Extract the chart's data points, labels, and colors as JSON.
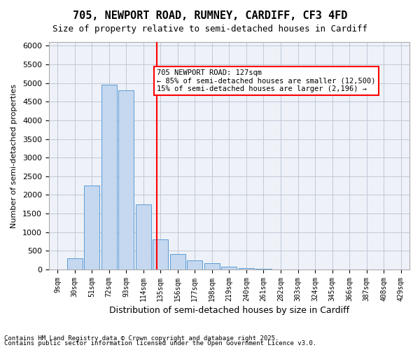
{
  "title_line1": "705, NEWPORT ROAD, RUMNEY, CARDIFF, CF3 4FD",
  "title_line2": "Size of property relative to semi-detached houses in Cardiff",
  "xlabel": "Distribution of semi-detached houses by size in Cardiff",
  "ylabel": "Number of semi-detached properties",
  "categories": [
    "9sqm",
    "30sqm",
    "51sqm",
    "72sqm",
    "93sqm",
    "114sqm",
    "135sqm",
    "156sqm",
    "177sqm",
    "198sqm",
    "219sqm",
    "240sqm",
    "261sqm",
    "282sqm",
    "303sqm",
    "324sqm",
    "345sqm",
    "366sqm",
    "387sqm",
    "408sqm",
    "429sqm"
  ],
  "values": [
    0,
    310,
    2250,
    4950,
    4800,
    1750,
    800,
    420,
    240,
    170,
    70,
    30,
    15,
    5,
    2,
    1,
    0,
    0,
    0,
    0,
    0
  ],
  "bar_color": "#c5d8f0",
  "bar_edge_color": "#5b9bd5",
  "vline_x": 5.8,
  "vline_color": "red",
  "annotation_title": "705 NEWPORT ROAD: 127sqm",
  "annotation_line1": "← 85% of semi-detached houses are smaller (12,500)",
  "annotation_line2": "15% of semi-detached houses are larger (2,196) →",
  "ylim": [
    0,
    6100
  ],
  "yticks": [
    0,
    500,
    1000,
    1500,
    2000,
    2500,
    3000,
    3500,
    4000,
    4500,
    5000,
    5500,
    6000
  ],
  "grid_color": "#c0c8d8",
  "bg_color": "#eef2f8",
  "footnote1": "Contains HM Land Registry data © Crown copyright and database right 2025.",
  "footnote2": "Contains public sector information licensed under the Open Government Licence v3.0."
}
